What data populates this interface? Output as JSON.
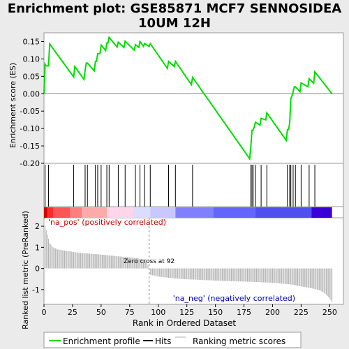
{
  "chart_data": {
    "type": "line",
    "title_line1": "Enrichment plot: GSE85871 MCF7 SENNOSIDEA",
    "title_line2": "10UM 12H",
    "xlabel": "Rank in Ordered Dataset",
    "ylabel_top": "Enrichment score (ES)",
    "ylabel_bottom": "Ranked list metric (PreRanked)",
    "xlim": [
      0,
      262
    ],
    "es_ylim": [
      -0.2,
      0.175
    ],
    "metric_ylim": [
      -1.7,
      2.4
    ],
    "x_ticks": [
      0,
      25,
      50,
      75,
      100,
      125,
      150,
      175,
      200,
      225,
      250
    ],
    "es_y_ticks": [
      "0.15",
      "0.10",
      "0.05",
      "0.00",
      "-0.05",
      "-0.10",
      "-0.15",
      "-0.20"
    ],
    "es_y_tick_values": [
      0.15,
      0.1,
      0.05,
      0.0,
      -0.05,
      -0.1,
      -0.15,
      -0.2
    ],
    "metric_y_ticks": [
      "2",
      "1",
      "0",
      "-1"
    ],
    "metric_y_tick_values": [
      2,
      1,
      0,
      -1
    ],
    "hits": [
      1,
      4,
      26,
      36,
      38,
      45,
      47,
      50,
      55,
      57,
      65,
      71,
      80,
      84,
      88,
      93,
      109,
      115,
      130,
      181,
      182,
      183,
      185,
      190,
      195,
      213,
      215,
      216,
      218,
      220,
      225,
      232,
      237
    ],
    "es_profile": {
      "x": [
        0,
        1,
        2,
        3,
        4,
        5,
        26,
        27,
        35,
        36,
        37,
        38,
        44,
        45,
        46,
        47,
        49,
        50,
        54,
        55,
        56,
        57,
        64,
        65,
        70,
        71,
        79,
        80,
        83,
        84,
        87,
        88,
        92,
        93,
        108,
        109,
        114,
        115,
        129,
        130,
        180,
        181,
        182,
        183,
        184,
        185,
        189,
        190,
        194,
        195,
        212,
        213,
        214,
        215,
        216,
        217,
        218,
        219,
        220,
        224,
        225,
        231,
        232,
        236,
        237,
        252
      ],
      "y": [
        0.0,
        0.085,
        0.08,
        0.08,
        0.08,
        0.143,
        0.048,
        0.078,
        0.041,
        0.067,
        0.088,
        0.088,
        0.066,
        0.093,
        0.093,
        0.115,
        0.115,
        0.14,
        0.124,
        0.146,
        0.146,
        0.162,
        0.134,
        0.148,
        0.133,
        0.151,
        0.125,
        0.141,
        0.133,
        0.15,
        0.136,
        0.144,
        0.136,
        0.144,
        0.073,
        0.093,
        0.078,
        0.093,
        0.026,
        0.047,
        -0.187,
        -0.15,
        -0.105,
        -0.105,
        -0.095,
        -0.082,
        -0.09,
        -0.071,
        -0.075,
        -0.055,
        -0.134,
        -0.103,
        -0.103,
        -0.085,
        -0.014,
        -0.006,
        0.006,
        0.02,
        0.02,
        0.006,
        0.031,
        0.02,
        0.043,
        0.03,
        0.063,
        0.0
      ]
    },
    "zero_cross": 92,
    "zero_cross_label": "Zero cross at 92",
    "pos_label": "'na_pos' (positively correlated)",
    "neg_label": "'na_neg' (negatively correlated)",
    "metric_points": [
      [
        0,
        2.3
      ],
      [
        1,
        2.0
      ],
      [
        3,
        1.6
      ],
      [
        5,
        1.2
      ],
      [
        8,
        1.0
      ],
      [
        12,
        0.9
      ],
      [
        20,
        0.83
      ],
      [
        30,
        0.75
      ],
      [
        40,
        0.7
      ],
      [
        50,
        0.66
      ],
      [
        60,
        0.6
      ],
      [
        70,
        0.55
      ],
      [
        80,
        0.5
      ],
      [
        88,
        0.42
      ],
      [
        91,
        0.15
      ],
      [
        92,
        0.0
      ],
      [
        93,
        -0.3
      ],
      [
        100,
        -0.38
      ],
      [
        110,
        -0.45
      ],
      [
        120,
        -0.5
      ],
      [
        140,
        -0.55
      ],
      [
        160,
        -0.6
      ],
      [
        180,
        -0.63
      ],
      [
        200,
        -0.68
      ],
      [
        215,
        -0.75
      ],
      [
        225,
        -0.85
      ],
      [
        235,
        -0.95
      ],
      [
        242,
        -1.05
      ],
      [
        246,
        -1.2
      ],
      [
        249,
        -1.35
      ],
      [
        251,
        -1.5
      ],
      [
        252,
        -1.6
      ]
    ],
    "colors": {
      "es_line": "#00dd00",
      "hits": "#000000",
      "metric": "#b0b0b0",
      "zero_line": "#808080",
      "panel_bg": "#ffffff",
      "page_bg": "#ebebeb"
    },
    "heat_colors": [
      "#d40000",
      "#ff2a2a",
      "#ff5555",
      "#ff7f7f",
      "#ffaaaa",
      "#ffd5e9",
      "#dcdcff",
      "#c8c8ff",
      "#8080ff",
      "#6464ff",
      "#5050f0",
      "#3a00d8"
    ],
    "heat_breaks": [
      0,
      3,
      8,
      23,
      33,
      55,
      78,
      93,
      115,
      148,
      185,
      234,
      252
    ],
    "legend": {
      "enrichment": "Enrichment profile",
      "hits": "Hits",
      "ranking": "Ranking metric scores"
    }
  }
}
